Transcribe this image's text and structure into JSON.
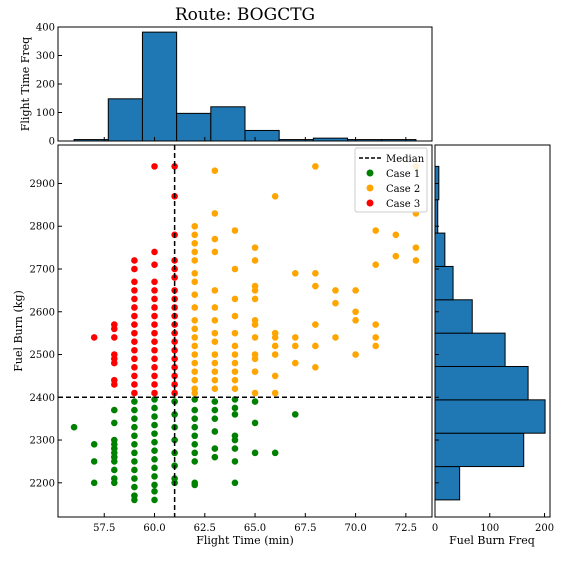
{
  "title": "Route: BOGCTG",
  "chart_data": {
    "type": "scatter",
    "title": "Route: BOGCTG",
    "xlabel": "Flight Time (min)",
    "ylabel": "Fuel Burn (kg)",
    "xlim": [
      55.2,
      73.8
    ],
    "ylim": [
      2120,
      2990
    ],
    "xticks": [
      "57.5",
      "60.0",
      "62.5",
      "65.0",
      "67.5",
      "70.0",
      "72.5"
    ],
    "yticks": [
      "2200",
      "2300",
      "2400",
      "2500",
      "2600",
      "2700",
      "2800",
      "2900"
    ],
    "median_x": 61,
    "median_y": 2400,
    "legend": {
      "position": "top-right",
      "entries": [
        "Median",
        "Case 1",
        "Case 2",
        "Case 3"
      ]
    },
    "colors": {
      "case1": "#008000",
      "case2": "#ffa500",
      "case3": "#ff0000",
      "hist": "#1f77b4"
    },
    "series": [
      {
        "name": "Case 1",
        "color": "#008000",
        "points": [
          [
            56,
            2330
          ],
          [
            57,
            2290
          ],
          [
            57,
            2250
          ],
          [
            57,
            2200
          ],
          [
            58,
            2370
          ],
          [
            58,
            2340
          ],
          [
            58,
            2300
          ],
          [
            58,
            2290
          ],
          [
            58,
            2280
          ],
          [
            58,
            2270
          ],
          [
            58,
            2260
          ],
          [
            58,
            2250
          ],
          [
            58,
            2230
          ],
          [
            58,
            2210
          ],
          [
            58,
            2200
          ],
          [
            59,
            2390
          ],
          [
            59,
            2370
          ],
          [
            59,
            2350
          ],
          [
            59,
            2330
          ],
          [
            59,
            2310
          ],
          [
            59,
            2290
          ],
          [
            59,
            2270
          ],
          [
            59,
            2250
          ],
          [
            59,
            2230
          ],
          [
            59,
            2210
          ],
          [
            59,
            2190
          ],
          [
            59,
            2170
          ],
          [
            59,
            2160
          ],
          [
            60,
            2395
          ],
          [
            60,
            2375
          ],
          [
            60,
            2355
          ],
          [
            60,
            2335
          ],
          [
            60,
            2315
          ],
          [
            60,
            2295
          ],
          [
            60,
            2275
          ],
          [
            60,
            2255
          ],
          [
            60,
            2235
          ],
          [
            60,
            2215
          ],
          [
            60,
            2195
          ],
          [
            60,
            2180
          ],
          [
            60,
            2160
          ],
          [
            61,
            2390
          ],
          [
            61,
            2360
          ],
          [
            61,
            2330
          ],
          [
            61,
            2300
          ],
          [
            61,
            2270
          ],
          [
            61,
            2240
          ],
          [
            61,
            2210
          ],
          [
            61,
            2200
          ],
          [
            62,
            2395
          ],
          [
            62,
            2370
          ],
          [
            62,
            2350
          ],
          [
            62,
            2330
          ],
          [
            62,
            2310
          ],
          [
            62,
            2290
          ],
          [
            62,
            2270
          ],
          [
            62,
            2250
          ],
          [
            62,
            2200
          ],
          [
            62,
            2195
          ],
          [
            63,
            2390
          ],
          [
            63,
            2370
          ],
          [
            63,
            2350
          ],
          [
            63,
            2320
          ],
          [
            63,
            2280
          ],
          [
            63,
            2260
          ],
          [
            64,
            2395
          ],
          [
            64,
            2375
          ],
          [
            64,
            2360
          ],
          [
            64,
            2310
          ],
          [
            64,
            2300
          ],
          [
            64,
            2280
          ],
          [
            64,
            2250
          ],
          [
            64,
            2200
          ],
          [
            65,
            2390
          ],
          [
            65,
            2340
          ],
          [
            65,
            2270
          ],
          [
            66,
            2270
          ],
          [
            67,
            2360
          ]
        ]
      },
      {
        "name": "Case 2",
        "color": "#ffa500",
        "points": [
          [
            62,
            2800
          ],
          [
            62,
            2780
          ],
          [
            62,
            2760
          ],
          [
            62,
            2740
          ],
          [
            62,
            2720
          ],
          [
            62,
            2690
          ],
          [
            62,
            2670
          ],
          [
            62,
            2640
          ],
          [
            62,
            2610
          ],
          [
            62,
            2580
          ],
          [
            62,
            2560
          ],
          [
            62,
            2540
          ],
          [
            62,
            2520
          ],
          [
            62,
            2500
          ],
          [
            62,
            2480
          ],
          [
            62,
            2460
          ],
          [
            62,
            2440
          ],
          [
            62,
            2420
          ],
          [
            62,
            2410
          ],
          [
            63,
            2930
          ],
          [
            63,
            2830
          ],
          [
            63,
            2770
          ],
          [
            63,
            2740
          ],
          [
            63,
            2650
          ],
          [
            63,
            2610
          ],
          [
            63,
            2580
          ],
          [
            63,
            2550
          ],
          [
            63,
            2530
          ],
          [
            63,
            2500
          ],
          [
            63,
            2480
          ],
          [
            63,
            2460
          ],
          [
            63,
            2440
          ],
          [
            63,
            2420
          ],
          [
            64,
            2790
          ],
          [
            64,
            2700
          ],
          [
            64,
            2630
          ],
          [
            64,
            2590
          ],
          [
            64,
            2550
          ],
          [
            64,
            2520
          ],
          [
            64,
            2500
          ],
          [
            64,
            2480
          ],
          [
            64,
            2460
          ],
          [
            64,
            2440
          ],
          [
            64,
            2420
          ],
          [
            65,
            2750
          ],
          [
            65,
            2720
          ],
          [
            65,
            2660
          ],
          [
            65,
            2650
          ],
          [
            65,
            2630
          ],
          [
            65,
            2580
          ],
          [
            65,
            2570
          ],
          [
            65,
            2540
          ],
          [
            65,
            2500
          ],
          [
            65,
            2490
          ],
          [
            65,
            2460
          ],
          [
            65,
            2410
          ],
          [
            66,
            2870
          ],
          [
            66,
            2550
          ],
          [
            66,
            2540
          ],
          [
            66,
            2520
          ],
          [
            66,
            2500
          ],
          [
            66,
            2450
          ],
          [
            66,
            2410
          ],
          [
            67,
            2690
          ],
          [
            67,
            2540
          ],
          [
            67,
            2520
          ],
          [
            67,
            2480
          ],
          [
            68,
            2940
          ],
          [
            68,
            2690
          ],
          [
            68,
            2660
          ],
          [
            68,
            2570
          ],
          [
            68,
            2520
          ],
          [
            68,
            2470
          ],
          [
            69,
            2650
          ],
          [
            69,
            2620
          ],
          [
            69,
            2540
          ],
          [
            70,
            2650
          ],
          [
            70,
            2600
          ],
          [
            70,
            2580
          ],
          [
            70,
            2500
          ],
          [
            71,
            2790
          ],
          [
            71,
            2710
          ],
          [
            71,
            2570
          ],
          [
            71,
            2540
          ],
          [
            71,
            2520
          ],
          [
            72,
            2780
          ],
          [
            72,
            2730
          ],
          [
            73,
            2940
          ],
          [
            73,
            2830
          ],
          [
            73,
            2750
          ],
          [
            73,
            2720
          ]
        ]
      },
      {
        "name": "Case 3",
        "color": "#ff0000",
        "points": [
          [
            57,
            2540
          ],
          [
            58,
            2570
          ],
          [
            58,
            2560
          ],
          [
            58,
            2540
          ],
          [
            58,
            2500
          ],
          [
            58,
            2490
          ],
          [
            58,
            2480
          ],
          [
            58,
            2440
          ],
          [
            58,
            2430
          ],
          [
            59,
            2720
          ],
          [
            59,
            2700
          ],
          [
            59,
            2670
          ],
          [
            59,
            2650
          ],
          [
            59,
            2630
          ],
          [
            59,
            2610
          ],
          [
            59,
            2590
          ],
          [
            59,
            2570
          ],
          [
            59,
            2550
          ],
          [
            59,
            2530
          ],
          [
            59,
            2510
          ],
          [
            59,
            2490
          ],
          [
            59,
            2470
          ],
          [
            59,
            2450
          ],
          [
            59,
            2430
          ],
          [
            59,
            2410
          ],
          [
            60,
            2940
          ],
          [
            60,
            2740
          ],
          [
            60,
            2710
          ],
          [
            60,
            2670
          ],
          [
            60,
            2650
          ],
          [
            60,
            2630
          ],
          [
            60,
            2610
          ],
          [
            60,
            2590
          ],
          [
            60,
            2570
          ],
          [
            60,
            2550
          ],
          [
            60,
            2530
          ],
          [
            60,
            2510
          ],
          [
            60,
            2490
          ],
          [
            60,
            2470
          ],
          [
            60,
            2450
          ],
          [
            60,
            2430
          ],
          [
            60,
            2410
          ],
          [
            61,
            2940
          ],
          [
            61,
            2870
          ],
          [
            61,
            2780
          ],
          [
            61,
            2720
          ],
          [
            61,
            2700
          ],
          [
            61,
            2680
          ],
          [
            61,
            2650
          ],
          [
            61,
            2630
          ],
          [
            61,
            2610
          ],
          [
            61,
            2590
          ],
          [
            61,
            2570
          ],
          [
            61,
            2550
          ],
          [
            61,
            2530
          ],
          [
            61,
            2510
          ],
          [
            61,
            2490
          ],
          [
            61,
            2470
          ],
          [
            61,
            2450
          ],
          [
            61,
            2430
          ],
          [
            61,
            2410
          ]
        ]
      }
    ],
    "hist_x": {
      "ylabel": "Flight Time Freq",
      "ylim": [
        0,
        400
      ],
      "yticks": [
        "0",
        "100",
        "200",
        "300",
        "400"
      ],
      "bins": [
        [
          56,
          57.7,
          5
        ],
        [
          57.7,
          59.4,
          148
        ],
        [
          59.4,
          61.1,
          382
        ],
        [
          61.1,
          62.8,
          97
        ],
        [
          62.8,
          64.5,
          120
        ],
        [
          64.5,
          66.2,
          37
        ],
        [
          66.2,
          67.9,
          5
        ],
        [
          67.9,
          69.6,
          10
        ],
        [
          69.6,
          71.3,
          5
        ],
        [
          71.3,
          73,
          5
        ]
      ]
    },
    "hist_y": {
      "xlabel": "Fuel Burn Freq",
      "xlim": [
        0,
        210
      ],
      "xticks": [
        "0",
        "100",
        "200"
      ],
      "bins": [
        [
          2160,
          2238,
          45
        ],
        [
          2238,
          2316,
          162
        ],
        [
          2316,
          2394,
          201
        ],
        [
          2394,
          2472,
          170
        ],
        [
          2472,
          2550,
          128
        ],
        [
          2550,
          2628,
          68
        ],
        [
          2628,
          2706,
          33
        ],
        [
          2706,
          2784,
          18
        ],
        [
          2784,
          2862,
          5
        ],
        [
          2862,
          2940,
          7
        ]
      ]
    }
  }
}
